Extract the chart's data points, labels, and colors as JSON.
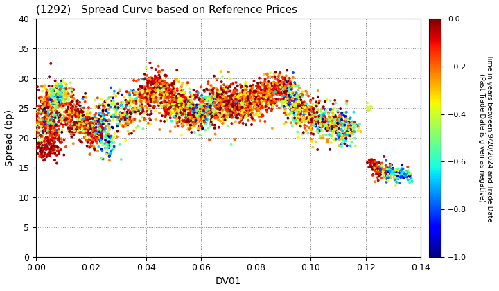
{
  "title": "(1292)   Spread Curve based on Reference Prices",
  "xlabel": "DV01",
  "ylabel": "Spread (bp)",
  "colorbar_label_line1": "Time in years between 9/20/2024 and Trade Date",
  "colorbar_label_line2": "(Past Trade Date is given as negative)",
  "xlim": [
    0.0,
    0.14
  ],
  "ylim": [
    0,
    40
  ],
  "xticks": [
    0.0,
    0.02,
    0.04,
    0.06,
    0.08,
    0.1,
    0.12,
    0.14
  ],
  "yticks": [
    0,
    5,
    10,
    15,
    20,
    25,
    30,
    35,
    40
  ],
  "clim": [
    -1.0,
    0.0
  ],
  "cticks": [
    0.0,
    -0.2,
    -0.4,
    -0.6,
    -0.8,
    -1.0
  ],
  "cmap": "jet",
  "marker_size": 8,
  "seed": 42,
  "segments": [
    [
      200,
      0.004,
      0.0025,
      24.0,
      2.2,
      -0.12,
      0.12
    ],
    [
      150,
      0.005,
      0.0025,
      22.0,
      2.0,
      -0.35,
      0.3
    ],
    [
      100,
      0.006,
      0.002,
      19.5,
      1.5,
      -0.08,
      0.08
    ],
    [
      60,
      0.003,
      0.0015,
      17.8,
      0.8,
      -0.04,
      0.04
    ],
    [
      80,
      0.008,
      0.002,
      26.5,
      1.2,
      -0.45,
      0.25
    ],
    [
      80,
      0.009,
      0.002,
      27.5,
      1.0,
      -0.55,
      0.2
    ],
    [
      120,
      0.013,
      0.0025,
      24.5,
      1.8,
      -0.2,
      0.2
    ],
    [
      100,
      0.015,
      0.0025,
      23.0,
      1.5,
      -0.1,
      0.12
    ],
    [
      80,
      0.018,
      0.002,
      22.5,
      1.5,
      -0.28,
      0.2
    ],
    [
      80,
      0.02,
      0.002,
      21.5,
      1.5,
      -0.15,
      0.15
    ],
    [
      80,
      0.022,
      0.002,
      21.0,
      1.5,
      -0.08,
      0.1
    ],
    [
      80,
      0.024,
      0.002,
      23.0,
      1.8,
      -0.45,
      0.28
    ],
    [
      60,
      0.026,
      0.002,
      19.0,
      1.2,
      -0.55,
      0.25
    ],
    [
      80,
      0.03,
      0.0025,
      24.5,
      1.8,
      -0.45,
      0.3
    ],
    [
      60,
      0.033,
      0.002,
      23.5,
      1.5,
      -0.22,
      0.22
    ],
    [
      100,
      0.038,
      0.0025,
      26.0,
      1.8,
      -0.3,
      0.25
    ],
    [
      80,
      0.04,
      0.002,
      27.5,
      1.5,
      -0.18,
      0.18
    ],
    [
      80,
      0.042,
      0.002,
      28.0,
      1.5,
      -0.12,
      0.12
    ],
    [
      60,
      0.044,
      0.0015,
      29.5,
      1.0,
      -0.08,
      0.08
    ],
    [
      80,
      0.046,
      0.002,
      27.5,
      1.5,
      -0.22,
      0.18
    ],
    [
      100,
      0.048,
      0.002,
      26.0,
      1.8,
      -0.15,
      0.15
    ],
    [
      80,
      0.05,
      0.002,
      27.0,
      1.5,
      -0.1,
      0.1
    ],
    [
      100,
      0.052,
      0.002,
      25.5,
      1.8,
      -0.25,
      0.22
    ],
    [
      80,
      0.054,
      0.002,
      25.0,
      1.5,
      -0.2,
      0.18
    ],
    [
      80,
      0.056,
      0.002,
      24.5,
      1.5,
      -0.15,
      0.15
    ],
    [
      80,
      0.058,
      0.002,
      24.0,
      1.5,
      -0.12,
      0.12
    ],
    [
      80,
      0.06,
      0.002,
      24.5,
      1.5,
      -0.48,
      0.28
    ],
    [
      80,
      0.062,
      0.002,
      25.0,
      1.5,
      -0.38,
      0.25
    ],
    [
      100,
      0.065,
      0.0025,
      25.5,
      1.8,
      -0.22,
      0.22
    ],
    [
      100,
      0.068,
      0.0025,
      26.0,
      1.8,
      -0.18,
      0.18
    ],
    [
      80,
      0.07,
      0.002,
      25.5,
      1.5,
      -0.15,
      0.15
    ],
    [
      80,
      0.072,
      0.002,
      26.0,
      1.5,
      -0.12,
      0.12
    ],
    [
      80,
      0.074,
      0.002,
      25.5,
      1.5,
      -0.1,
      0.1
    ],
    [
      80,
      0.076,
      0.002,
      26.0,
      1.5,
      -0.22,
      0.2
    ],
    [
      80,
      0.078,
      0.002,
      25.5,
      1.5,
      -0.18,
      0.15
    ],
    [
      80,
      0.08,
      0.002,
      26.5,
      1.5,
      -0.15,
      0.12
    ],
    [
      60,
      0.082,
      0.002,
      27.0,
      1.5,
      -0.12,
      0.12
    ],
    [
      80,
      0.085,
      0.002,
      27.5,
      1.5,
      -0.18,
      0.15
    ],
    [
      80,
      0.088,
      0.002,
      28.0,
      1.5,
      -0.15,
      0.12
    ],
    [
      60,
      0.09,
      0.002,
      29.0,
      1.2,
      -0.12,
      0.1
    ],
    [
      80,
      0.092,
      0.002,
      27.0,
      1.5,
      -0.45,
      0.3
    ],
    [
      80,
      0.094,
      0.002,
      25.5,
      1.5,
      -0.35,
      0.25
    ],
    [
      80,
      0.097,
      0.002,
      24.5,
      1.5,
      -0.25,
      0.22
    ],
    [
      80,
      0.1,
      0.002,
      23.5,
      1.5,
      -0.2,
      0.2
    ],
    [
      80,
      0.103,
      0.002,
      23.0,
      1.5,
      -0.3,
      0.25
    ],
    [
      60,
      0.106,
      0.002,
      22.5,
      1.5,
      -0.4,
      0.28
    ],
    [
      60,
      0.108,
      0.002,
      22.0,
      1.5,
      -0.35,
      0.25
    ],
    [
      60,
      0.11,
      0.002,
      22.5,
      1.5,
      -0.28,
      0.22
    ],
    [
      60,
      0.112,
      0.002,
      22.0,
      1.5,
      -0.55,
      0.28
    ],
    [
      60,
      0.114,
      0.002,
      21.5,
      1.2,
      -0.48,
      0.25
    ],
    [
      8,
      0.121,
      0.0008,
      25.2,
      0.3,
      -0.42,
      0.05
    ],
    [
      15,
      0.122,
      0.0008,
      15.8,
      0.6,
      -0.05,
      0.05
    ],
    [
      60,
      0.125,
      0.0015,
      14.5,
      0.8,
      -0.12,
      0.12
    ],
    [
      60,
      0.128,
      0.0015,
      14.2,
      0.8,
      -0.45,
      0.28
    ],
    [
      50,
      0.131,
      0.0015,
      14.0,
      0.7,
      -0.58,
      0.22
    ],
    [
      40,
      0.134,
      0.0012,
      13.8,
      0.6,
      -0.7,
      0.18
    ]
  ]
}
